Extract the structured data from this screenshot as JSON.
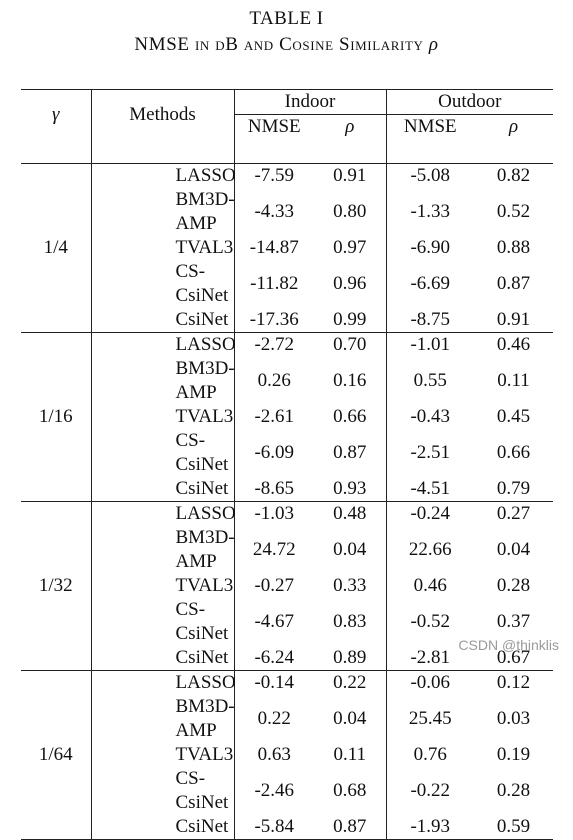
{
  "caption": {
    "line1": "TABLE I",
    "line2_prefix": "NMSE in dB and Cosine Similarity ",
    "line2_symbol": "ρ"
  },
  "header": {
    "gamma": "γ",
    "methods": "Methods",
    "indoor": "Indoor",
    "outdoor": "Outdoor",
    "nmse": "NMSE",
    "rho": "ρ"
  },
  "groups": [
    {
      "gamma": "1/4",
      "rows": [
        {
          "method": "LASSO",
          "in_nmse": "-7.59",
          "in_rho": "0.91",
          "out_nmse": "-5.08",
          "out_rho": "0.82"
        },
        {
          "method": "BM3D-AMP",
          "in_nmse": "-4.33",
          "in_rho": "0.80",
          "out_nmse": "-1.33",
          "out_rho": "0.52"
        },
        {
          "method": "TVAL3",
          "in_nmse": "-14.87",
          "in_rho": "0.97",
          "out_nmse": "-6.90",
          "out_rho": "0.88"
        },
        {
          "method": "CS-CsiNet",
          "in_nmse": "-11.82",
          "in_rho": "0.96",
          "out_nmse": "-6.69",
          "out_rho": "0.87"
        },
        {
          "method": "CsiNet",
          "in_nmse": "-17.36",
          "in_rho": "0.99",
          "out_nmse": "-8.75",
          "out_rho": "0.91"
        }
      ]
    },
    {
      "gamma": "1/16",
      "rows": [
        {
          "method": "LASSO",
          "in_nmse": "-2.72",
          "in_rho": "0.70",
          "out_nmse": "-1.01",
          "out_rho": "0.46"
        },
        {
          "method": "BM3D-AMP",
          "in_nmse": "0.26",
          "in_rho": "0.16",
          "out_nmse": "0.55",
          "out_rho": "0.11"
        },
        {
          "method": "TVAL3",
          "in_nmse": "-2.61",
          "in_rho": "0.66",
          "out_nmse": "-0.43",
          "out_rho": "0.45"
        },
        {
          "method": "CS-CsiNet",
          "in_nmse": "-6.09",
          "in_rho": "0.87",
          "out_nmse": "-2.51",
          "out_rho": "0.66"
        },
        {
          "method": "CsiNet",
          "in_nmse": "-8.65",
          "in_rho": "0.93",
          "out_nmse": "-4.51",
          "out_rho": "0.79"
        }
      ]
    },
    {
      "gamma": "1/32",
      "rows": [
        {
          "method": "LASSO",
          "in_nmse": "-1.03",
          "in_rho": "0.48",
          "out_nmse": "-0.24",
          "out_rho": "0.27"
        },
        {
          "method": "BM3D-AMP",
          "in_nmse": "24.72",
          "in_rho": "0.04",
          "out_nmse": "22.66",
          "out_rho": "0.04"
        },
        {
          "method": "TVAL3",
          "in_nmse": "-0.27",
          "in_rho": "0.33",
          "out_nmse": "0.46",
          "out_rho": "0.28"
        },
        {
          "method": "CS-CsiNet",
          "in_nmse": "-4.67",
          "in_rho": "0.83",
          "out_nmse": "-0.52",
          "out_rho": "0.37"
        },
        {
          "method": "CsiNet",
          "in_nmse": "-6.24",
          "in_rho": "0.89",
          "out_nmse": "-2.81",
          "out_rho": "0.67"
        }
      ]
    },
    {
      "gamma": "1/64",
      "rows": [
        {
          "method": "LASSO",
          "in_nmse": "-0.14",
          "in_rho": "0.22",
          "out_nmse": "-0.06",
          "out_rho": "0.12"
        },
        {
          "method": "BM3D-AMP",
          "in_nmse": "0.22",
          "in_rho": "0.04",
          "out_nmse": "25.45",
          "out_rho": "0.03"
        },
        {
          "method": "TVAL3",
          "in_nmse": "0.63",
          "in_rho": "0.11",
          "out_nmse": "0.76",
          "out_rho": "0.19"
        },
        {
          "method": "CS-CsiNet",
          "in_nmse": "-2.46",
          "in_rho": "0.68",
          "out_nmse": "-0.22",
          "out_rho": "0.28"
        },
        {
          "method": "CsiNet",
          "in_nmse": "-5.84",
          "in_rho": "0.87",
          "out_nmse": "-1.93",
          "out_rho": "0.59"
        }
      ]
    }
  ],
  "bold_method": "CsiNet",
  "watermark": "CSDN @thinklis"
}
